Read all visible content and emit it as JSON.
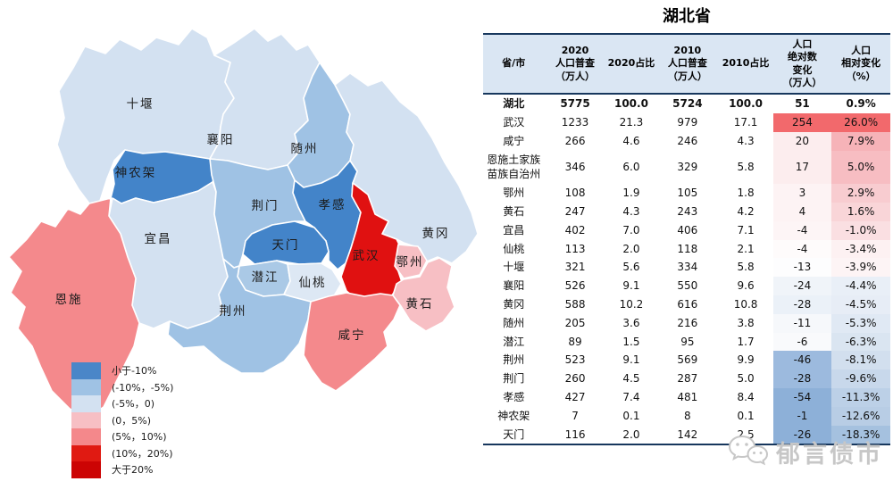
{
  "title": "湖北省",
  "table": {
    "headers": [
      "省/市",
      "2020\n人口普查\n（万人）",
      "2020占比",
      "2010\n人口普查\n（万人）",
      "2010占比",
      "人口\n绝对数\n变化\n（万人）",
      "人口\n相对变化\n（%）"
    ],
    "rows": [
      {
        "cells": [
          "湖北",
          "5775",
          "100.0",
          "5724",
          "100.0",
          "51",
          "0.9%"
        ],
        "bold": true,
        "abs_bg": "",
        "rel_bg": ""
      },
      {
        "cells": [
          "武汉",
          "1233",
          "21.3",
          "979",
          "17.1",
          "254",
          "26.0%"
        ],
        "bold": false,
        "abs_bg": "#f2696c",
        "rel_bg": "#f2696c"
      },
      {
        "cells": [
          "咸宁",
          "266",
          "4.6",
          "246",
          "4.3",
          "20",
          "7.9%"
        ],
        "bold": false,
        "abs_bg": "#fcedee",
        "rel_bg": "#f6b3b8"
      },
      {
        "cells": [
          "恩施土家族苗族自治州",
          "346",
          "6.0",
          "329",
          "5.8",
          "17",
          "5.0%"
        ],
        "bold": false,
        "abs_bg": "#fcedee",
        "rel_bg": "#f7bdc2"
      },
      {
        "cells": [
          "鄂州",
          "108",
          "1.9",
          "105",
          "1.8",
          "3",
          "2.9%"
        ],
        "bold": false,
        "abs_bg": "#fdf3f4",
        "rel_bg": "#f8ccd0"
      },
      {
        "cells": [
          "黄石",
          "247",
          "4.3",
          "243",
          "4.2",
          "4",
          "1.6%"
        ],
        "bold": false,
        "abs_bg": "#fdf3f4",
        "rel_bg": "#f9d5d8"
      },
      {
        "cells": [
          "宜昌",
          "402",
          "7.0",
          "406",
          "7.1",
          "-4",
          "-1.0%"
        ],
        "bold": false,
        "abs_bg": "#fdf5f6",
        "rel_bg": "#fadfe2"
      },
      {
        "cells": [
          "仙桃",
          "113",
          "2.0",
          "118",
          "2.1",
          "-4",
          "-3.4%"
        ],
        "bold": false,
        "abs_bg": "#fefbfb",
        "rel_bg": "#fdf1f2"
      },
      {
        "cells": [
          "十堰",
          "321",
          "5.6",
          "334",
          "5.8",
          "-13",
          "-3.9%"
        ],
        "bold": false,
        "abs_bg": "#fdfdfe",
        "rel_bg": "#fdf4f5"
      },
      {
        "cells": [
          "襄阳",
          "526",
          "9.1",
          "550",
          "9.6",
          "-24",
          "-4.4%"
        ],
        "bold": false,
        "abs_bg": "#f0f4f9",
        "rel_bg": "#e9eff7"
      },
      {
        "cells": [
          "黄冈",
          "588",
          "10.2",
          "616",
          "10.8",
          "-28",
          "-4.5%"
        ],
        "bold": false,
        "abs_bg": "#ebf1f8",
        "rel_bg": "#e7edf6"
      },
      {
        "cells": [
          "随州",
          "205",
          "3.6",
          "216",
          "3.8",
          "-11",
          "-5.3%"
        ],
        "bold": false,
        "abs_bg": "#f6f8fb",
        "rel_bg": "#e0e9f4"
      },
      {
        "cells": [
          "潜江",
          "89",
          "1.5",
          "95",
          "1.7",
          "-6",
          "-6.3%"
        ],
        "bold": false,
        "abs_bg": "#f9fafc",
        "rel_bg": "#dae5f1"
      },
      {
        "cells": [
          "荆州",
          "523",
          "9.1",
          "569",
          "9.9",
          "-46",
          "-8.1%"
        ],
        "bold": false,
        "abs_bg": "#9cbade",
        "rel_bg": "#d2dfee"
      },
      {
        "cells": [
          "荆门",
          "260",
          "4.5",
          "287",
          "5.0",
          "-28",
          "-9.6%"
        ],
        "bold": false,
        "abs_bg": "#9cbade",
        "rel_bg": "#c8d8eb"
      },
      {
        "cells": [
          "孝感",
          "427",
          "7.4",
          "481",
          "8.4",
          "-54",
          "-11.3%"
        ],
        "bold": false,
        "abs_bg": "#8db0d8",
        "rel_bg": "#bcd0e7"
      },
      {
        "cells": [
          "神农架",
          "7",
          "0.1",
          "8",
          "0.1",
          "-1",
          "-12.6%"
        ],
        "bold": false,
        "abs_bg": "#8db0d8",
        "rel_bg": "#b8cde5"
      },
      {
        "cells": [
          "天门",
          "116",
          "2.0",
          "142",
          "2.5",
          "-26",
          "-18.3%"
        ],
        "bold": false,
        "abs_bg": "#8db0d8",
        "rel_bg": "#a5c1df"
      }
    ]
  },
  "map": {
    "regions": [
      {
        "id": "shiyan",
        "label": "十堰",
        "color": "#d3e1f1"
      },
      {
        "id": "xiangyang",
        "label": "襄阳",
        "color": "#d3e1f1"
      },
      {
        "id": "suizhou",
        "label": "随州",
        "color": "#9fc2e4"
      },
      {
        "id": "shennongjia",
        "label": "神农架",
        "color": "#4384c9"
      },
      {
        "id": "jingmen",
        "label": "荆门",
        "color": "#9fc2e4"
      },
      {
        "id": "xiaogan",
        "label": "孝感",
        "color": "#4384c9"
      },
      {
        "id": "yichang",
        "label": "宜昌",
        "color": "#d3e1f1"
      },
      {
        "id": "enshi",
        "label": "恩施",
        "color": "#f4898c"
      },
      {
        "id": "jingzhou",
        "label": "荆州",
        "color": "#9fc2e4"
      },
      {
        "id": "tianmen",
        "label": "天门",
        "color": "#4384c9"
      },
      {
        "id": "qianjiang",
        "label": "潜江",
        "color": "#aac9e6"
      },
      {
        "id": "xiantao",
        "label": "仙桃",
        "color": "#dde8f4"
      },
      {
        "id": "wuhan",
        "label": "武汉",
        "color": "#e01111"
      },
      {
        "id": "huanggang",
        "label": "黄冈",
        "color": "#d3e1f1"
      },
      {
        "id": "ezhou",
        "label": "鄂州",
        "color": "#f7bfc4"
      },
      {
        "id": "huangshi",
        "label": "黄石",
        "color": "#f7bfc4"
      },
      {
        "id": "xianning",
        "label": "咸宁",
        "color": "#f4898c"
      }
    ],
    "legend": [
      {
        "label": "小于-10%",
        "color": "#4a86c8"
      },
      {
        "label": "(-10%，-5%)",
        "color": "#9fc2e4"
      },
      {
        "label": "(-5%，0)",
        "color": "#d3e1f1"
      },
      {
        "label": "(0，5%)",
        "color": "#f7bfc4"
      },
      {
        "label": "(5%，10%)",
        "color": "#f4888b"
      },
      {
        "label": "(10%，20%)",
        "color": "#e01a12"
      },
      {
        "label": "大于20%",
        "color": "#cc0404"
      }
    ]
  },
  "watermark": {
    "text": "郁言债市"
  },
  "chart_data": {
    "type": "table",
    "title": "湖北省",
    "columns": [
      "省/市",
      "2020人口普查（万人）",
      "2020占比",
      "2010人口普查（万人）",
      "2010占比",
      "人口绝对数变化（万人）",
      "人口相对变化（%）"
    ],
    "rows": [
      [
        "湖北",
        5775,
        100.0,
        5724,
        100.0,
        51,
        0.9
      ],
      [
        "武汉",
        1233,
        21.3,
        979,
        17.1,
        254,
        26.0
      ],
      [
        "咸宁",
        266,
        4.6,
        246,
        4.3,
        20,
        7.9
      ],
      [
        "恩施土家族苗族自治州",
        346,
        6.0,
        329,
        5.8,
        17,
        5.0
      ],
      [
        "鄂州",
        108,
        1.9,
        105,
        1.8,
        3,
        2.9
      ],
      [
        "黄石",
        247,
        4.3,
        243,
        4.2,
        4,
        1.6
      ],
      [
        "宜昌",
        402,
        7.0,
        406,
        7.1,
        -4,
        -1.0
      ],
      [
        "仙桃",
        113,
        2.0,
        118,
        2.1,
        -4,
        -3.4
      ],
      [
        "十堰",
        321,
        5.6,
        334,
        5.8,
        -13,
        -3.9
      ],
      [
        "襄阳",
        526,
        9.1,
        550,
        9.6,
        -24,
        -4.4
      ],
      [
        "黄冈",
        588,
        10.2,
        616,
        10.8,
        -28,
        -4.5
      ],
      [
        "随州",
        205,
        3.6,
        216,
        3.8,
        -11,
        -5.3
      ],
      [
        "潜江",
        89,
        1.5,
        95,
        1.7,
        -6,
        -6.3
      ],
      [
        "荆州",
        523,
        9.1,
        569,
        9.9,
        -46,
        -8.1
      ],
      [
        "荆门",
        260,
        4.5,
        287,
        5.0,
        -28,
        -9.6
      ],
      [
        "孝感",
        427,
        7.4,
        481,
        8.4,
        -54,
        -11.3
      ],
      [
        "神农架",
        7,
        0.1,
        8,
        0.1,
        -1,
        -12.6
      ],
      [
        "天门",
        116,
        2.0,
        142,
        2.5,
        -26,
        -18.3
      ]
    ],
    "map_choropleth_classes": {
      "小于-10%": [
        "孝感",
        "神农架",
        "天门"
      ],
      "(-10%,-5%)": [
        "随州",
        "潜江",
        "荆州",
        "荆门"
      ],
      "(-5%,0)": [
        "宜昌",
        "仙桃",
        "十堰",
        "襄阳",
        "黄冈"
      ],
      "(0,5%)": [
        "鄂州",
        "黄石"
      ],
      "(5%,10%)": [
        "咸宁",
        "恩施土家族苗族自治州"
      ],
      "大于20%": [
        "武汉"
      ]
    },
    "legend_position": "bottom-left",
    "value_unit": "万人 / %"
  }
}
